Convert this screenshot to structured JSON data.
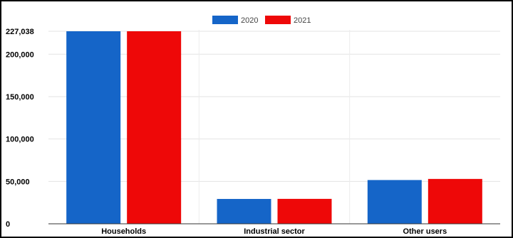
{
  "chart_data": {
    "type": "bar",
    "categories": [
      "Households",
      "Industrial sector",
      "Other users"
    ],
    "series": [
      {
        "name": "2020",
        "color": "#1565c8",
        "values": [
          227038,
          29300,
          51600
        ]
      },
      {
        "name": "2021",
        "color": "#ee0808",
        "values": [
          227038,
          29400,
          52900
        ]
      }
    ],
    "yticks": [
      0,
      50000,
      100000,
      150000,
      200000,
      227038
    ],
    "ytick_labels": [
      "0",
      "50,000",
      "100,000",
      "150,000",
      "200,000",
      "227,038"
    ],
    "ylim": [
      0,
      227038
    ],
    "legend_position": "top-center",
    "grid": true,
    "title": "",
    "xlabel": "",
    "ylabel": ""
  }
}
